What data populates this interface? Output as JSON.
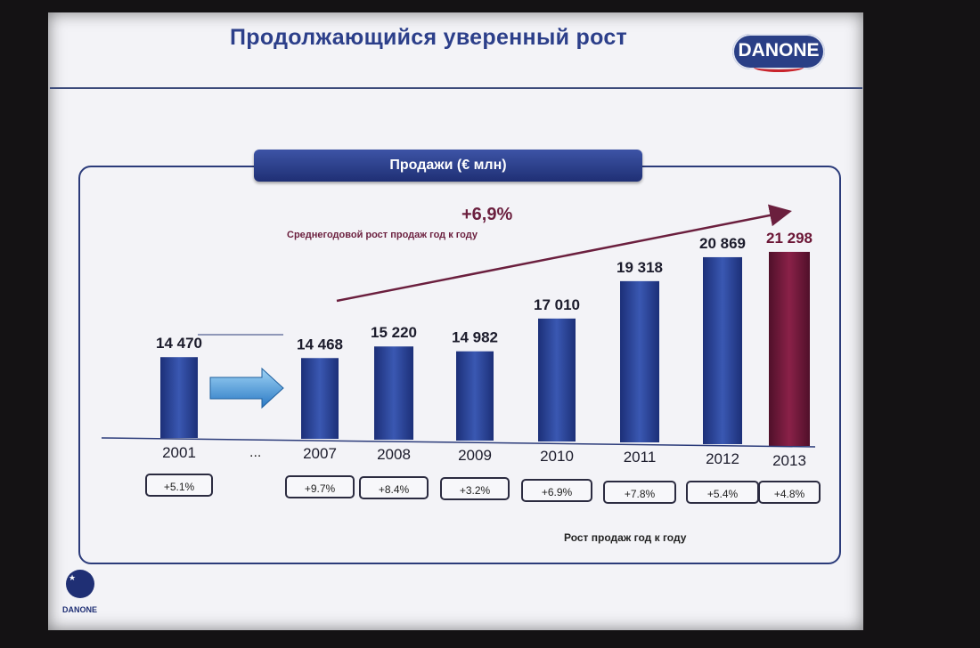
{
  "slide": {
    "title": "Продолжающийся уверенный рост",
    "logo_text": "DANONE",
    "corner_logo_text": "DANONE",
    "growth_rate": "+6,9%",
    "growth_caption": "Среднегодовой рост продаж год к году",
    "yoy_caption": "Рост продаж год к году",
    "ellipsis": "...",
    "colors": {
      "bar": "#243c8e",
      "highlight_bar": "#6b1535",
      "accent": "#2c3f8a"
    }
  },
  "chart_data": {
    "type": "bar",
    "title": "Продажи (€ млн)",
    "categories": [
      "2001",
      "2007",
      "2008",
      "2009",
      "2010",
      "2011",
      "2012",
      "2013"
    ],
    "values": [
      14470,
      14468,
      15220,
      14982,
      17010,
      19318,
      20869,
      21298
    ],
    "value_labels": [
      "14 470",
      "14 468",
      "15 220",
      "14 982",
      "17 010",
      "19 318",
      "20 869",
      "21 298"
    ],
    "growth": [
      "+5.1%",
      "+9.7%",
      "+8.4%",
      "+3.2%",
      "+6.9%",
      "+7.8%",
      "+5.4%",
      "+4.8%"
    ],
    "highlight": "2013",
    "grid": false
  }
}
